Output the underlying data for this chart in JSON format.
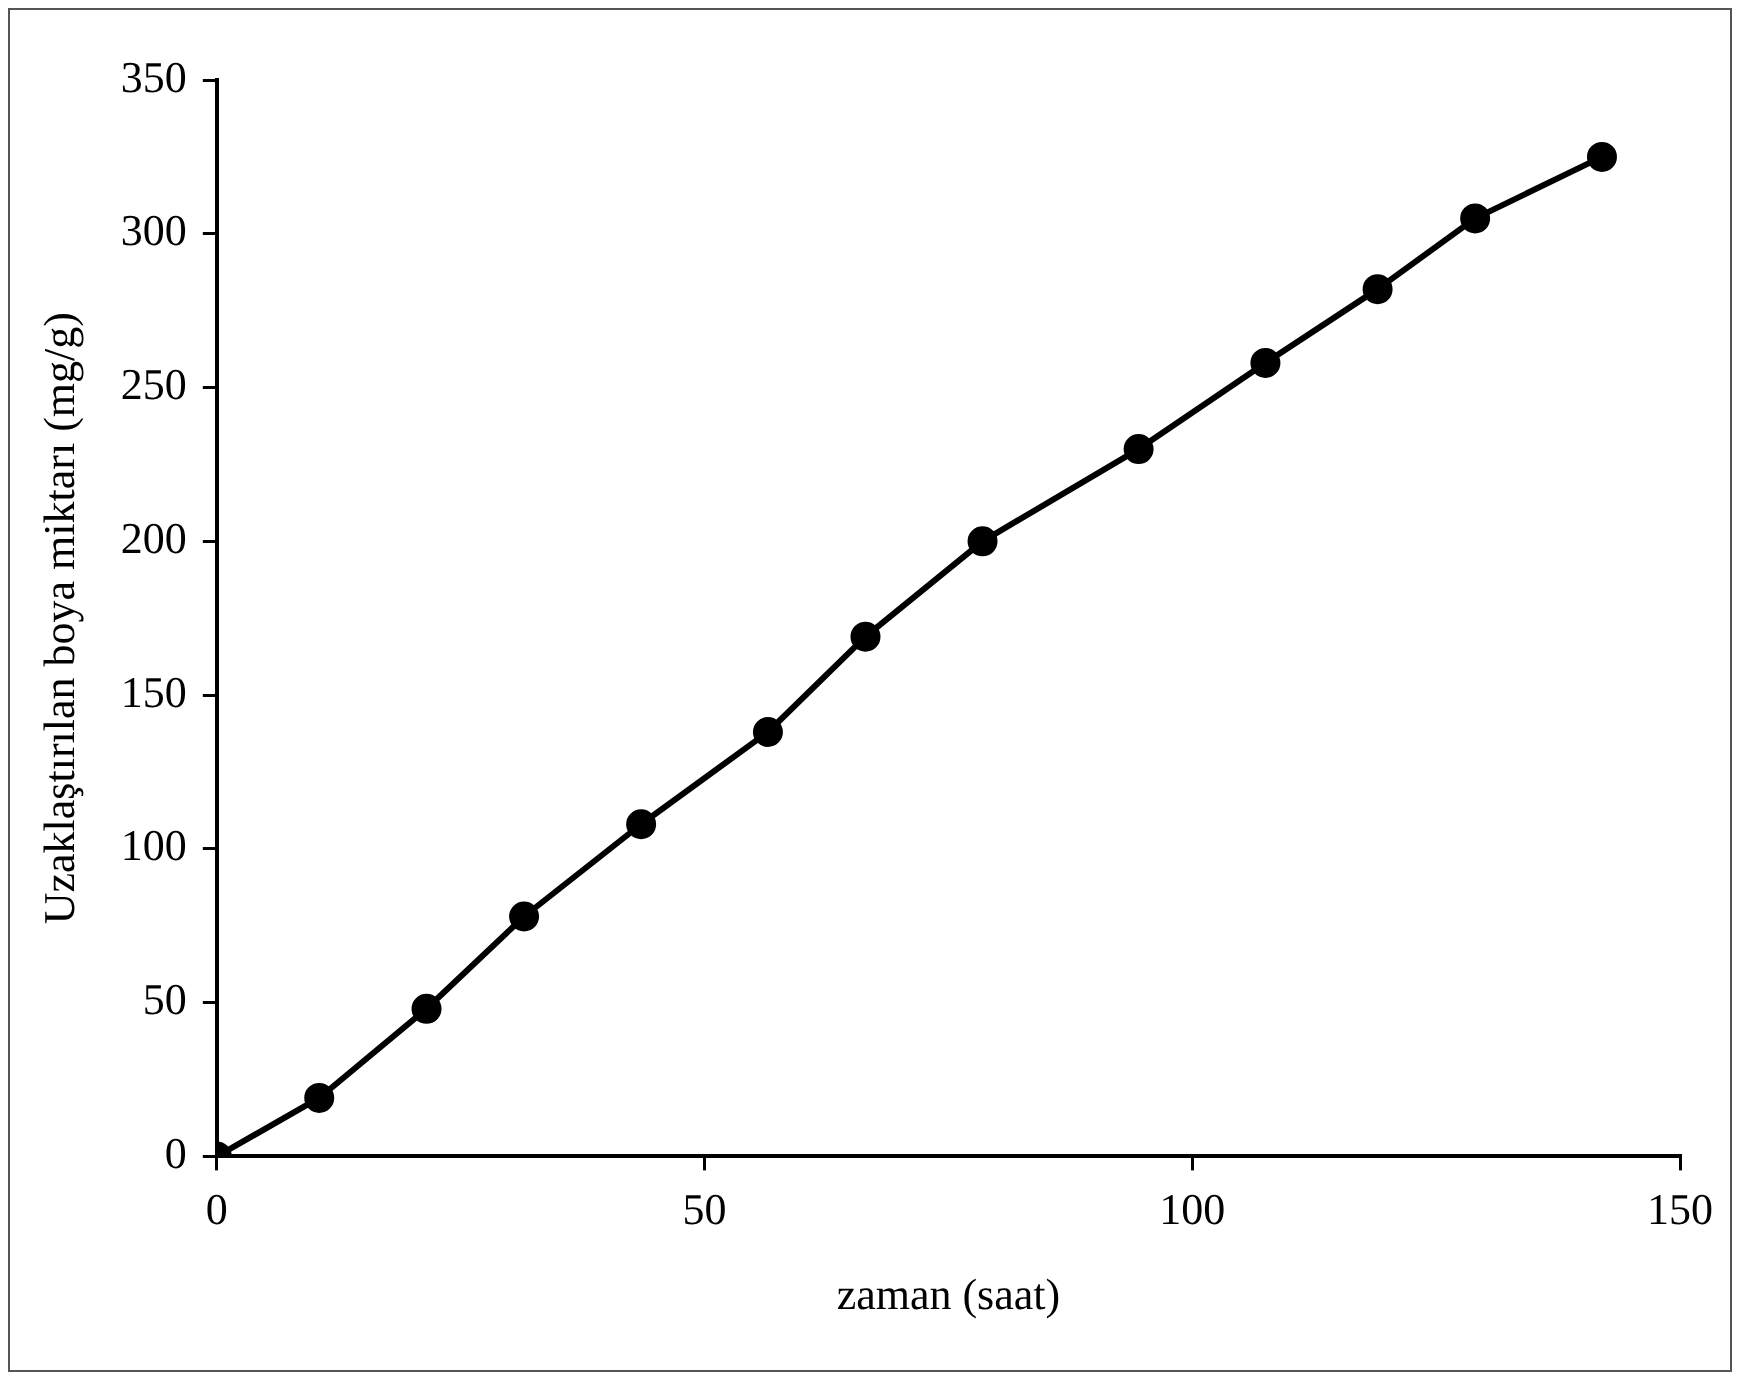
{
  "chart_data": {
    "type": "line",
    "xlabel": "zaman (saat)",
    "ylabel": "Uzaklaştırılan boya miktarı (mg/g)",
    "x": [
      0,
      10.5,
      21.5,
      31.5,
      43.5,
      56.5,
      66.5,
      78.5,
      94.5,
      107.5,
      119,
      129,
      142
    ],
    "series": [
      {
        "color": "#000000",
        "values": [
          0,
          19,
          48,
          78,
          108,
          138,
          169,
          200,
          230,
          258,
          282,
          305,
          325
        ]
      }
    ],
    "xlim": [
      0,
      150
    ],
    "xticks": [
      0,
      50,
      100,
      150
    ],
    "ylim": [
      0,
      350
    ],
    "yticks": [
      0,
      50,
      100,
      150,
      200,
      250,
      300,
      350
    ],
    "grid": false,
    "legend": false,
    "marker": "circle",
    "line_style": "solid"
  }
}
